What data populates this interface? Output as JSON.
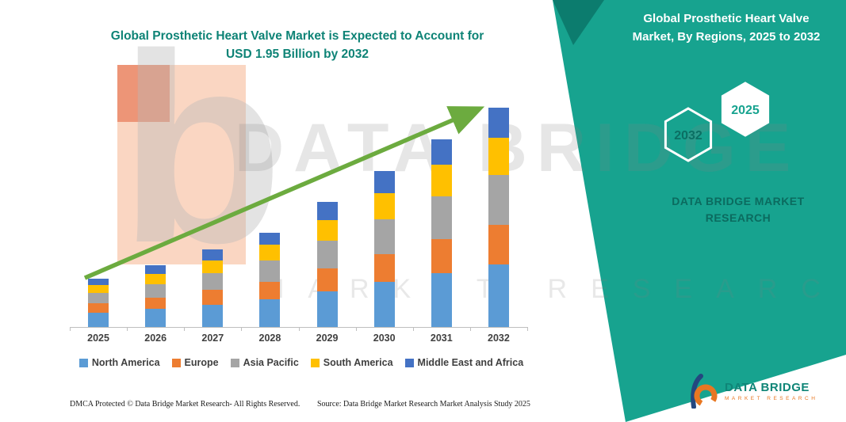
{
  "title": {
    "line1": "Global Prosthetic Heart Valve Market is Expected to Account for",
    "line2": "USD 1.95 Billion by 2032"
  },
  "side_panel": {
    "heading_line1": "Global Prosthetic Heart Valve",
    "heading_line2": "Market, By Regions, 2025 to 2032",
    "hex_back_label": "2032",
    "hex_front_label": "2025",
    "brand_line1": "DATA BRIDGE MARKET",
    "brand_line2": "RESEARCH",
    "accent_color": "#17A38F",
    "accent_dark": "#0C7C6E"
  },
  "watermark": {
    "line1": "DATA BRIDGE",
    "line2": "MARKET RESEARCH",
    "logo_glyph": "b"
  },
  "chart_data": {
    "type": "bar",
    "stacked": true,
    "title": "Global Prosthetic Heart Valve Market is Expected to Account for USD 1.95 Billion by 2032",
    "unit": "USD Billion",
    "categories": [
      "2025",
      "2026",
      "2027",
      "2028",
      "2029",
      "2030",
      "2031",
      "2032"
    ],
    "series": [
      {
        "name": "North America",
        "color": "#5B9BD5",
        "values": [
          0.13,
          0.16,
          0.2,
          0.25,
          0.32,
          0.4,
          0.48,
          0.56
        ]
      },
      {
        "name": "Europe",
        "color": "#ED7D31",
        "values": [
          0.08,
          0.1,
          0.13,
          0.15,
          0.2,
          0.25,
          0.3,
          0.35
        ]
      },
      {
        "name": "Asia Pacific",
        "color": "#A5A5A5",
        "values": [
          0.09,
          0.12,
          0.15,
          0.19,
          0.25,
          0.31,
          0.38,
          0.44
        ]
      },
      {
        "name": "South America",
        "color": "#FFC000",
        "values": [
          0.07,
          0.09,
          0.11,
          0.14,
          0.18,
          0.23,
          0.28,
          0.33
        ]
      },
      {
        "name": "Middle East and Africa",
        "color": "#4472C4",
        "values": [
          0.06,
          0.08,
          0.1,
          0.11,
          0.16,
          0.2,
          0.23,
          0.27
        ]
      }
    ],
    "totals": [
      0.43,
      0.55,
      0.69,
      0.84,
      1.11,
      1.39,
      1.67,
      1.95
    ],
    "ylim": [
      0,
      2.0
    ],
    "grid": false,
    "legend_position": "bottom",
    "trend_arrow": {
      "present": true,
      "color": "#6CAB3F"
    }
  },
  "footer": {
    "dmca": "DMCA Protected © Data Bridge Market Research-  All Rights Reserved.",
    "source": "Source: Data Bridge Market Research  Market Analysis Study 2025"
  },
  "logo": {
    "name": "DATA BRIDGE",
    "subtitle": "MARKET RESEARCH"
  }
}
